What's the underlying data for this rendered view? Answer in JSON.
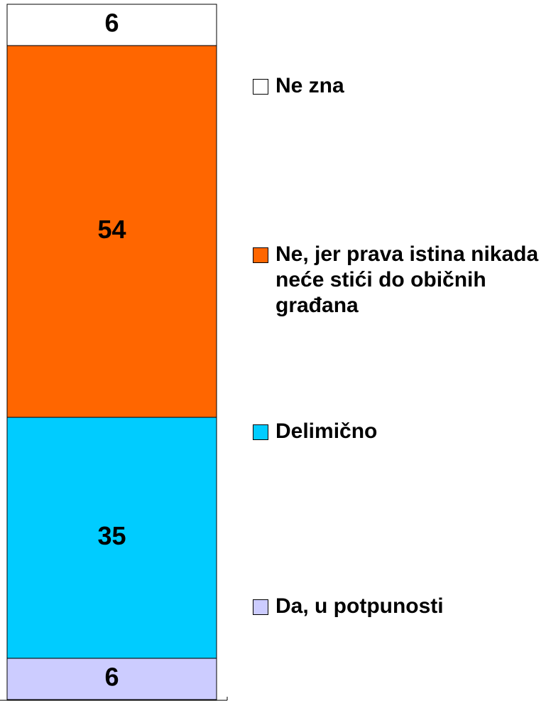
{
  "chart_data": {
    "type": "stacked_bar",
    "series": [
      {
        "name": "Da, u potpunosti",
        "color": "#ccccff",
        "values": [
          6
        ]
      },
      {
        "name": "Delimično",
        "color": "#00ccff",
        "values": [
          35
        ]
      },
      {
        "name": "Ne, jer prava istina nikada neće stići do običnih građana",
        "color": "#ff6600",
        "values": [
          54
        ]
      },
      {
        "name": "Ne zna",
        "color": "#ffffff",
        "values": [
          6
        ]
      }
    ],
    "legend": "right"
  }
}
